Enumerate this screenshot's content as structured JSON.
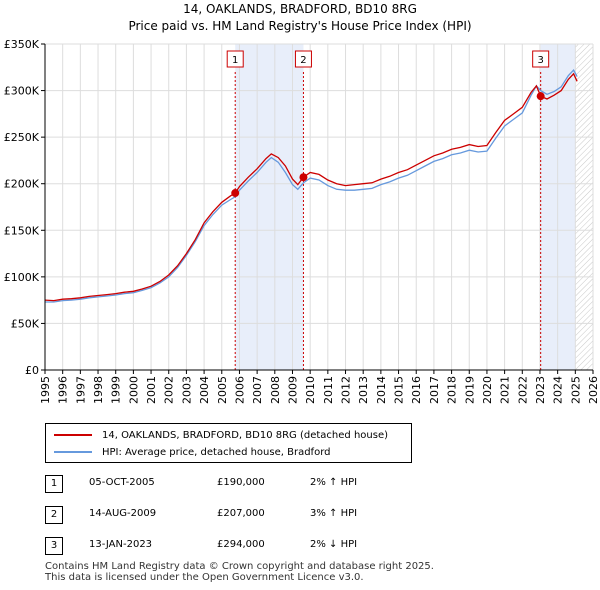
{
  "title_line1": "14, OAKLANDS, BRADFORD, BD10 8RG",
  "title_line2": "Price paid vs. HM Land Registry's House Price Index (HPI)",
  "colors": {
    "red": "#cc0000",
    "blue": "#6699dd",
    "shade": "#e8eefa",
    "grid": "#dddddd"
  },
  "chart_data": {
    "type": "line",
    "xlim": [
      1995,
      2026
    ],
    "ylim": [
      0,
      350000
    ],
    "y_ticks": [
      0,
      50000,
      100000,
      150000,
      200000,
      250000,
      300000,
      350000
    ],
    "y_tick_labels": [
      "£0",
      "£50K",
      "£100K",
      "£150K",
      "£200K",
      "£250K",
      "£300K",
      "£350K"
    ],
    "x_tick_labels": [
      "1995",
      "1996",
      "1997",
      "1998",
      "1999",
      "2000",
      "2001",
      "2002",
      "2003",
      "2004",
      "2005",
      "2006",
      "2007",
      "2008",
      "2009",
      "2010",
      "2011",
      "2012",
      "2013",
      "2014",
      "2015",
      "2016",
      "2017",
      "2018",
      "2019",
      "2020",
      "2021",
      "2022",
      "2023",
      "2024",
      "2025",
      "2026"
    ],
    "x_years": [
      1995,
      1996,
      1997,
      1998,
      1999,
      2000,
      2001,
      2002,
      2003,
      2004,
      2005,
      2006,
      2007,
      2008,
      2009,
      2010,
      2011,
      2012,
      2013,
      2014,
      2015,
      2016,
      2017,
      2018,
      2019,
      2020,
      2021,
      2022,
      2023,
      2024,
      2025,
      2026
    ],
    "shaded_ranges": [
      [
        2005.76,
        2009.62
      ],
      [
        2023.04,
        2025.0
      ]
    ],
    "hatched_after": 2025.0,
    "series": [
      {
        "name": "14, OAKLANDS, BRADFORD, BD10 8RG (detached house)",
        "color": "#cc0000",
        "points": [
          [
            1995.0,
            75000
          ],
          [
            1995.5,
            74500
          ],
          [
            1996.0,
            76000
          ],
          [
            1996.5,
            76500
          ],
          [
            1997.0,
            77500
          ],
          [
            1997.5,
            79000
          ],
          [
            1998.0,
            80000
          ],
          [
            1998.5,
            81000
          ],
          [
            1999.0,
            82000
          ],
          [
            1999.5,
            83500
          ],
          [
            2000.0,
            84500
          ],
          [
            2000.5,
            87000
          ],
          [
            2001.0,
            90000
          ],
          [
            2001.5,
            95000
          ],
          [
            2002.0,
            102000
          ],
          [
            2002.5,
            112000
          ],
          [
            2003.0,
            125000
          ],
          [
            2003.5,
            140000
          ],
          [
            2004.0,
            158000
          ],
          [
            2004.5,
            170000
          ],
          [
            2005.0,
            180000
          ],
          [
            2005.5,
            187000
          ],
          [
            2005.76,
            190000
          ],
          [
            2006.0,
            197000
          ],
          [
            2006.5,
            207000
          ],
          [
            2007.0,
            216000
          ],
          [
            2007.5,
            227000
          ],
          [
            2007.8,
            232000
          ],
          [
            2008.2,
            228000
          ],
          [
            2008.6,
            219000
          ],
          [
            2009.0,
            205000
          ],
          [
            2009.3,
            199000
          ],
          [
            2009.62,
            207000
          ],
          [
            2010.0,
            212000
          ],
          [
            2010.5,
            210000
          ],
          [
            2011.0,
            204000
          ],
          [
            2011.5,
            200000
          ],
          [
            2012.0,
            198000
          ],
          [
            2012.5,
            199000
          ],
          [
            2013.0,
            200000
          ],
          [
            2013.5,
            201000
          ],
          [
            2014.0,
            205000
          ],
          [
            2014.5,
            208000
          ],
          [
            2015.0,
            212000
          ],
          [
            2015.5,
            215000
          ],
          [
            2016.0,
            220000
          ],
          [
            2016.5,
            225000
          ],
          [
            2017.0,
            230000
          ],
          [
            2017.5,
            233000
          ],
          [
            2018.0,
            237000
          ],
          [
            2018.5,
            239000
          ],
          [
            2019.0,
            242000
          ],
          [
            2019.5,
            240000
          ],
          [
            2020.0,
            241000
          ],
          [
            2020.5,
            255000
          ],
          [
            2021.0,
            268000
          ],
          [
            2021.5,
            275000
          ],
          [
            2022.0,
            282000
          ],
          [
            2022.5,
            298000
          ],
          [
            2022.8,
            305000
          ],
          [
            2023.04,
            294000
          ],
          [
            2023.4,
            291000
          ],
          [
            2023.8,
            295000
          ],
          [
            2024.2,
            300000
          ],
          [
            2024.6,
            312000
          ],
          [
            2024.9,
            318000
          ],
          [
            2025.1,
            310000
          ]
        ]
      },
      {
        "name": "HPI: Average price, detached house, Bradford",
        "color": "#6699dd",
        "points": [
          [
            1995.0,
            73000
          ],
          [
            1995.5,
            73000
          ],
          [
            1996.0,
            74500
          ],
          [
            1996.5,
            75000
          ],
          [
            1997.0,
            76000
          ],
          [
            1997.5,
            77500
          ],
          [
            1998.0,
            78500
          ],
          [
            1998.5,
            79500
          ],
          [
            1999.0,
            80500
          ],
          [
            1999.5,
            82000
          ],
          [
            2000.0,
            83000
          ],
          [
            2000.5,
            85500
          ],
          [
            2001.0,
            88500
          ],
          [
            2001.5,
            93500
          ],
          [
            2002.0,
            100000
          ],
          [
            2002.5,
            110000
          ],
          [
            2003.0,
            123000
          ],
          [
            2003.5,
            138000
          ],
          [
            2004.0,
            155000
          ],
          [
            2004.5,
            167000
          ],
          [
            2005.0,
            177000
          ],
          [
            2005.5,
            183000
          ],
          [
            2005.76,
            186000
          ],
          [
            2006.0,
            193000
          ],
          [
            2006.5,
            203000
          ],
          [
            2007.0,
            212000
          ],
          [
            2007.5,
            223000
          ],
          [
            2007.8,
            228000
          ],
          [
            2008.2,
            223000
          ],
          [
            2008.6,
            212000
          ],
          [
            2009.0,
            199000
          ],
          [
            2009.3,
            194000
          ],
          [
            2009.62,
            201000
          ],
          [
            2010.0,
            206000
          ],
          [
            2010.5,
            204000
          ],
          [
            2011.0,
            198000
          ],
          [
            2011.5,
            194000
          ],
          [
            2012.0,
            193000
          ],
          [
            2012.5,
            193000
          ],
          [
            2013.0,
            194000
          ],
          [
            2013.5,
            195000
          ],
          [
            2014.0,
            199000
          ],
          [
            2014.5,
            202000
          ],
          [
            2015.0,
            206000
          ],
          [
            2015.5,
            209000
          ],
          [
            2016.0,
            214000
          ],
          [
            2016.5,
            219000
          ],
          [
            2017.0,
            224000
          ],
          [
            2017.5,
            227000
          ],
          [
            2018.0,
            231000
          ],
          [
            2018.5,
            233000
          ],
          [
            2019.0,
            236000
          ],
          [
            2019.5,
            234000
          ],
          [
            2020.0,
            235000
          ],
          [
            2020.5,
            249000
          ],
          [
            2021.0,
            262000
          ],
          [
            2021.5,
            269000
          ],
          [
            2022.0,
            276000
          ],
          [
            2022.5,
            295000
          ],
          [
            2022.8,
            305000
          ],
          [
            2023.04,
            300000
          ],
          [
            2023.4,
            296000
          ],
          [
            2023.8,
            299000
          ],
          [
            2024.2,
            304000
          ],
          [
            2024.6,
            316000
          ],
          [
            2024.9,
            322000
          ],
          [
            2025.1,
            315000
          ]
        ]
      }
    ],
    "markers": [
      {
        "label": "1",
        "x": 2005.76,
        "y": 190000
      },
      {
        "label": "2",
        "x": 2009.62,
        "y": 207000
      },
      {
        "label": "3",
        "x": 2023.04,
        "y": 294000
      }
    ]
  },
  "legend": {
    "red_label": "14, OAKLANDS, BRADFORD, BD10 8RG (detached house)",
    "blue_label": "HPI: Average price, detached house, Bradford"
  },
  "transactions": [
    {
      "num": "1",
      "date": "05-OCT-2005",
      "price": "£190,000",
      "hpi": "2% ↑ HPI"
    },
    {
      "num": "2",
      "date": "14-AUG-2009",
      "price": "£207,000",
      "hpi": "3% ↑ HPI"
    },
    {
      "num": "3",
      "date": "13-JAN-2023",
      "price": "£294,000",
      "hpi": "2% ↓ HPI"
    }
  ],
  "footer": {
    "line1": "Contains HM Land Registry data © Crown copyright and database right 2025.",
    "line2": "This data is licensed under the Open Government Licence v3.0."
  }
}
